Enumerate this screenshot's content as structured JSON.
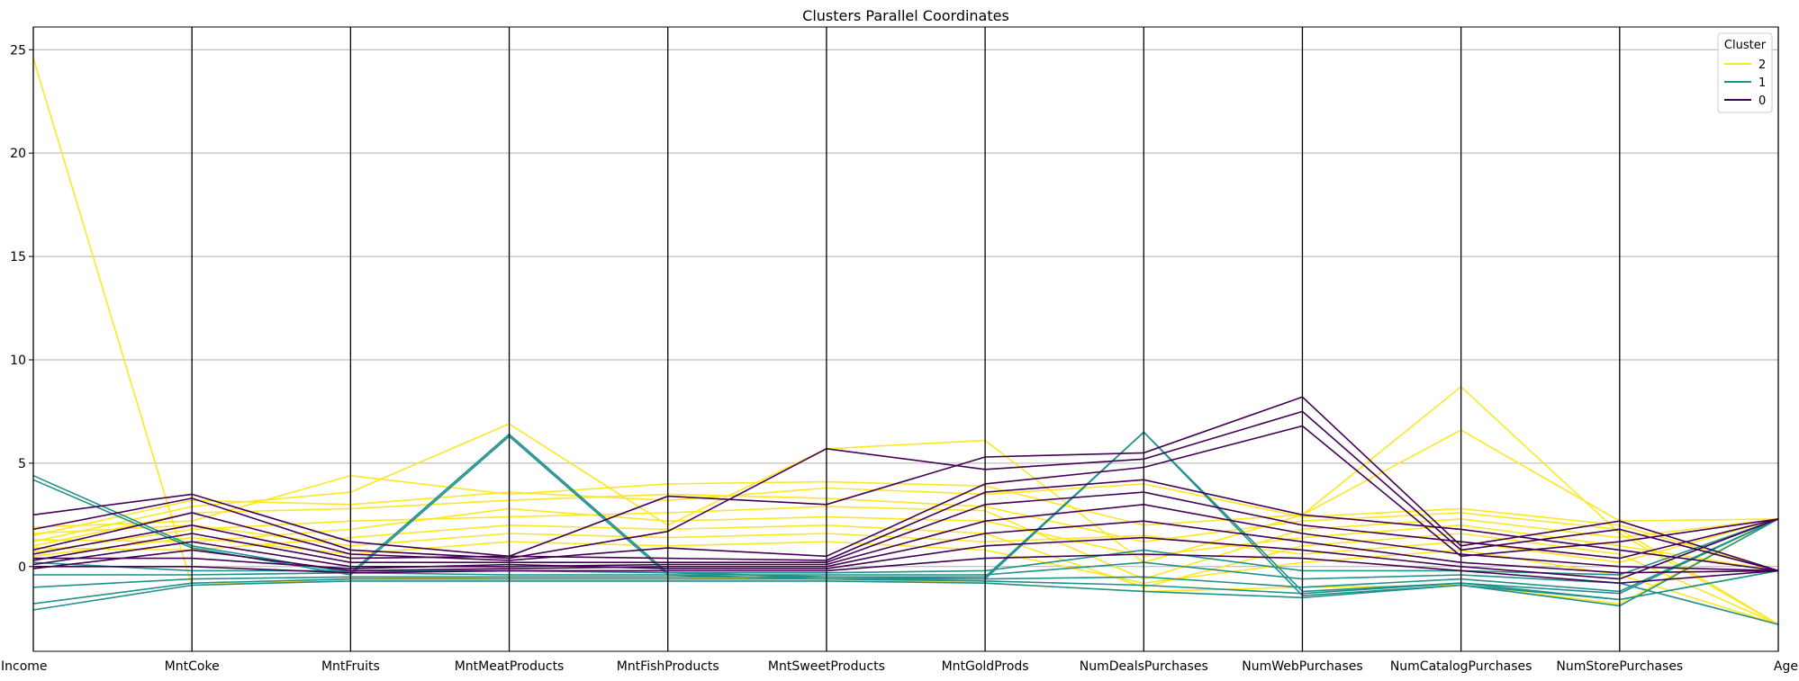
{
  "chart_data": {
    "type": "line",
    "subtype": "parallel-coordinates",
    "title": "Clusters Parallel Coordinates",
    "axes": [
      "Income",
      "MntCoke",
      "MntFruits",
      "MntMeatProducts",
      "MntFishProducts",
      "MntSweetProducts",
      "MntGoldProds",
      "NumDealsPurchases",
      "NumWebPurchases",
      "NumCatalogPurchases",
      "NumStorePurchases",
      "Age"
    ],
    "ylim": [
      -4.1,
      26.1
    ],
    "yticks": [
      0,
      5,
      10,
      15,
      20,
      25
    ],
    "grid": "horizontal",
    "legend": {
      "title": "Cluster",
      "placement": "top-right",
      "entries": [
        "2",
        "1",
        "0"
      ]
    },
    "colors": {
      "2": "#fde725",
      "1": "#21918c",
      "0": "#440154"
    },
    "series": [
      {
        "cluster": "2",
        "values": [
          24.6,
          -0.9,
          -0.6,
          -0.5,
          -0.5,
          -0.6,
          -0.8,
          -1.2,
          -1.0,
          -0.9,
          -1.8,
          2.3
        ]
      },
      {
        "cluster": "2",
        "values": [
          1.2,
          2.9,
          3.6,
          6.9,
          2.0,
          5.7,
          6.1,
          0.2,
          2.5,
          8.7,
          1.6,
          -2.8
        ]
      },
      {
        "cluster": "2",
        "values": [
          1.9,
          2.2,
          4.4,
          3.5,
          4.0,
          4.1,
          3.9,
          2.0,
          2.5,
          6.6,
          2.2,
          2.3
        ]
      },
      {
        "cluster": "2",
        "values": [
          1.5,
          3.2,
          3.0,
          3.6,
          3.2,
          3.8,
          3.5,
          4.0,
          2.4,
          2.8,
          2.0,
          -0.2
        ]
      },
      {
        "cluster": "2",
        "values": [
          1.0,
          2.6,
          2.8,
          3.2,
          3.5,
          3.3,
          2.9,
          1.2,
          2.2,
          2.6,
          1.8,
          -2.8
        ]
      },
      {
        "cluster": "2",
        "values": [
          0.7,
          1.8,
          2.2,
          2.4,
          2.6,
          2.9,
          2.7,
          -0.6,
          1.8,
          2.3,
          1.4,
          2.3
        ]
      },
      {
        "cluster": "2",
        "values": [
          1.3,
          1.2,
          1.8,
          2.8,
          2.2,
          2.4,
          2.2,
          0.5,
          1.4,
          2.0,
          1.0,
          -0.2
        ]
      },
      {
        "cluster": "2",
        "values": [
          0.9,
          0.8,
          1.4,
          2.0,
          1.8,
          2.0,
          1.6,
          -1.0,
          1.0,
          1.6,
          0.6,
          -2.8
        ]
      },
      {
        "cluster": "2",
        "values": [
          1.6,
          2.0,
          1.0,
          1.6,
          1.4,
          1.6,
          1.2,
          1.5,
          0.6,
          1.2,
          0.2,
          2.3
        ]
      },
      {
        "cluster": "2",
        "values": [
          0.5,
          1.4,
          0.6,
          1.2,
          1.0,
          1.2,
          0.8,
          -0.8,
          0.2,
          0.8,
          -0.4,
          -2.8
        ]
      },
      {
        "cluster": "1",
        "values": [
          4.4,
          1.0,
          -0.3,
          6.4,
          -0.3,
          -0.5,
          -0.5,
          6.5,
          -1.2,
          -0.8,
          -1.3,
          2.3
        ]
      },
      {
        "cluster": "1",
        "values": [
          4.2,
          0.9,
          -0.4,
          6.3,
          -0.4,
          -0.6,
          -0.6,
          6.5,
          -1.4,
          -0.9,
          -1.6,
          -0.2
        ]
      },
      {
        "cluster": "1",
        "values": [
          -2.1,
          -0.9,
          -0.7,
          -0.7,
          -0.7,
          -0.7,
          -0.8,
          -1.2,
          -1.5,
          -0.9,
          -1.9,
          2.3
        ]
      },
      {
        "cluster": "1",
        "values": [
          -1.8,
          -0.8,
          -0.6,
          -0.6,
          -0.6,
          -0.6,
          -0.7,
          -0.9,
          -1.3,
          -0.8,
          -1.6,
          -0.2
        ]
      },
      {
        "cluster": "1",
        "values": [
          -1.0,
          -0.6,
          -0.5,
          -0.5,
          -0.5,
          -0.5,
          -0.6,
          -0.5,
          -1.0,
          -0.6,
          -1.2,
          2.3
        ]
      },
      {
        "cluster": "1",
        "values": [
          -0.4,
          -0.4,
          -0.3,
          -0.4,
          -0.4,
          -0.4,
          -0.4,
          0.2,
          -0.6,
          -0.4,
          -0.8,
          -2.8
        ]
      },
      {
        "cluster": "1",
        "values": [
          0.2,
          -0.2,
          -0.2,
          -0.2,
          -0.3,
          -0.3,
          -0.2,
          0.8,
          -0.2,
          -0.2,
          -0.4,
          2.3
        ]
      },
      {
        "cluster": "0",
        "values": [
          2.5,
          3.5,
          1.2,
          0.5,
          3.4,
          3.0,
          5.3,
          5.5,
          8.2,
          1.0,
          2.2,
          -0.2
        ]
      },
      {
        "cluster": "0",
        "values": [
          1.8,
          3.3,
          0.8,
          0.4,
          1.7,
          5.7,
          4.7,
          5.2,
          7.5,
          0.8,
          1.8,
          -0.2
        ]
      },
      {
        "cluster": "0",
        "values": [
          0.8,
          2.6,
          0.6,
          0.3,
          0.9,
          0.5,
          4.0,
          4.8,
          6.8,
          0.5,
          1.2,
          2.3
        ]
      },
      {
        "cluster": "0",
        "values": [
          0.6,
          2.0,
          0.4,
          0.5,
          0.4,
          0.3,
          3.6,
          4.2,
          2.5,
          1.8,
          0.8,
          -0.2
        ]
      },
      {
        "cluster": "0",
        "values": [
          0.3,
          1.6,
          0.2,
          0.2,
          0.2,
          0.2,
          3.0,
          3.6,
          2.0,
          1.2,
          0.4,
          2.3
        ]
      },
      {
        "cluster": "0",
        "values": [
          0.1,
          1.2,
          0.0,
          0.0,
          0.1,
          0.1,
          2.2,
          3.0,
          1.6,
          0.6,
          0.0,
          -0.2
        ]
      },
      {
        "cluster": "0",
        "values": [
          -0.1,
          0.8,
          -0.2,
          -0.1,
          0.0,
          0.0,
          1.6,
          2.2,
          1.2,
          0.2,
          -0.3,
          -0.2
        ]
      },
      {
        "cluster": "0",
        "values": [
          0.4,
          0.4,
          -0.1,
          0.1,
          -0.1,
          -0.1,
          1.0,
          1.4,
          0.8,
          0.0,
          -0.6,
          2.3
        ]
      },
      {
        "cluster": "0",
        "values": [
          0.0,
          0.0,
          -0.3,
          -0.2,
          -0.2,
          -0.2,
          0.4,
          0.6,
          0.4,
          -0.2,
          -0.8,
          -0.2
        ]
      }
    ]
  }
}
